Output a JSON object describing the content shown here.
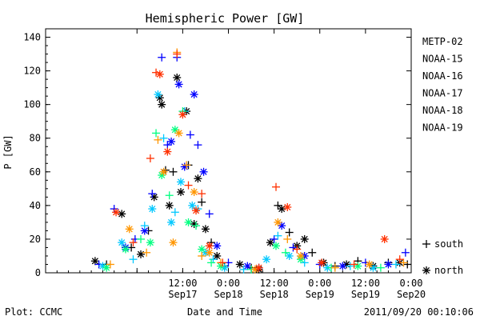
{
  "chart_data": {
    "type": "scatter",
    "title": "Hemispheric Power [GW]",
    "xlabel": "Date and Time",
    "ylabel": "P [GW]",
    "ylim": [
      0,
      145
    ],
    "xlim": [
      "2011-09-16 00:00",
      "2011-09-20 00:00"
    ],
    "y_ticks": [
      0,
      20,
      40,
      60,
      80,
      100,
      120,
      140
    ],
    "x_ticks": [
      {
        "x": "2011-09-17 00:00",
        "label": ""
      },
      {
        "x": "2011-09-17 12:00",
        "label": "12:00",
        "date": "Sep17"
      },
      {
        "x": "2011-09-18 00:00",
        "label": "0:00",
        "date": "Sep18"
      },
      {
        "x": "2011-09-18 12:00",
        "label": "12:00",
        "date": "Sep18"
      },
      {
        "x": "2011-09-19 00:00",
        "label": "0:00",
        "date": "Sep19"
      },
      {
        "x": "2011-09-19 12:00",
        "label": "12:00",
        "date": "Sep19"
      },
      {
        "x": "2011-09-20 00:00",
        "label": "0:00",
        "date": "Sep20"
      }
    ],
    "grid": false,
    "legend_position": "right",
    "symbols": [
      {
        "marker": "+",
        "hemisphere": "south"
      },
      {
        "marker": "*",
        "hemisphere": "north"
      }
    ],
    "series": [
      {
        "name": "METP-02",
        "color": "#000000",
        "points": [
          [
            "2011-09-16 13:00",
            7,
            "*"
          ],
          [
            "2011-09-16 16:00",
            5,
            "+"
          ],
          [
            "2011-09-16 20:00",
            35,
            "*"
          ],
          [
            "2011-09-16 22:30",
            15,
            "+"
          ],
          [
            "2011-09-17 01:00",
            11,
            "*"
          ],
          [
            "2011-09-17 03:00",
            25,
            "+"
          ],
          [
            "2011-09-17 04:30",
            45,
            "*"
          ],
          [
            "2011-09-17 06:00",
            104,
            "*"
          ],
          [
            "2011-09-17 06:30",
            100,
            "*"
          ],
          [
            "2011-09-17 07:30",
            61,
            "+"
          ],
          [
            "2011-09-17 08:30",
            40,
            "*"
          ],
          [
            "2011-09-17 09:30",
            60,
            "+"
          ],
          [
            "2011-09-17 10:30",
            116,
            "*"
          ],
          [
            "2011-09-17 11:30",
            48,
            "*"
          ],
          [
            "2011-09-17 13:00",
            96,
            "*"
          ],
          [
            "2011-09-17 13:30",
            64,
            "+"
          ],
          [
            "2011-09-17 15:00",
            29,
            "*"
          ],
          [
            "2011-09-17 16:00",
            56,
            "*"
          ],
          [
            "2011-09-17 17:00",
            42,
            "+"
          ],
          [
            "2011-09-17 18:00",
            26,
            "*"
          ],
          [
            "2011-09-17 19:30",
            18,
            "+"
          ],
          [
            "2011-09-17 21:00",
            10,
            "*"
          ],
          [
            "2011-09-17 23:00",
            4,
            "+"
          ],
          [
            "2011-09-18 03:00",
            5,
            "*"
          ],
          [
            "2011-09-18 06:00",
            3,
            "+"
          ],
          [
            "2011-09-18 08:00",
            2,
            "*"
          ],
          [
            "2011-09-18 11:00",
            18,
            "*"
          ],
          [
            "2011-09-18 13:00",
            40,
            "+"
          ],
          [
            "2011-09-18 14:00",
            38,
            "*"
          ],
          [
            "2011-09-18 16:00",
            24,
            "+"
          ],
          [
            "2011-09-18 18:00",
            16,
            "*"
          ],
          [
            "2011-09-18 20:00",
            20,
            "*"
          ],
          [
            "2011-09-18 22:00",
            12,
            "+"
          ],
          [
            "2011-09-19 01:00",
            6,
            "*"
          ],
          [
            "2011-09-19 04:00",
            4,
            "+"
          ],
          [
            "2011-09-19 07:00",
            5,
            "*"
          ],
          [
            "2011-09-19 10:00",
            7,
            "+"
          ],
          [
            "2011-09-19 14:00",
            4,
            "*"
          ],
          [
            "2011-09-19 18:00",
            6,
            "+"
          ],
          [
            "2011-09-19 21:00",
            6,
            "*"
          ],
          [
            "2011-09-19 23:00",
            5,
            "+"
          ]
        ]
      },
      {
        "name": "NOAA-15",
        "color": "#0000ff",
        "points": [
          [
            "2011-09-16 14:00",
            5,
            "+"
          ],
          [
            "2011-09-16 18:00",
            38,
            "+"
          ],
          [
            "2011-09-16 21:00",
            15,
            "*"
          ],
          [
            "2011-09-16 23:30",
            20,
            "+"
          ],
          [
            "2011-09-17 02:00",
            25,
            "*"
          ],
          [
            "2011-09-17 04:00",
            47,
            "+"
          ],
          [
            "2011-09-17 06:30",
            128,
            "+"
          ],
          [
            "2011-09-17 08:00",
            76,
            "+"
          ],
          [
            "2011-09-17 09:00",
            78,
            "*"
          ],
          [
            "2011-09-17 10:30",
            128,
            "+"
          ],
          [
            "2011-09-17 11:00",
            112,
            "*"
          ],
          [
            "2011-09-17 12:30",
            63,
            "*"
          ],
          [
            "2011-09-17 14:00",
            82,
            "+"
          ],
          [
            "2011-09-17 15:00",
            106,
            "*"
          ],
          [
            "2011-09-17 16:00",
            76,
            "+"
          ],
          [
            "2011-09-17 17:30",
            60,
            "*"
          ],
          [
            "2011-09-17 19:00",
            35,
            "+"
          ],
          [
            "2011-09-17 21:00",
            16,
            "*"
          ],
          [
            "2011-09-18 00:00",
            6,
            "+"
          ],
          [
            "2011-09-18 05:00",
            4,
            "*"
          ],
          [
            "2011-09-18 08:00",
            3,
            "+"
          ],
          [
            "2011-09-18 12:00",
            20,
            "+"
          ],
          [
            "2011-09-18 14:00",
            28,
            "*"
          ],
          [
            "2011-09-18 17:00",
            15,
            "+"
          ],
          [
            "2011-09-18 20:00",
            10,
            "*"
          ],
          [
            "2011-09-19 00:00",
            5,
            "+"
          ],
          [
            "2011-09-19 06:00",
            4,
            "*"
          ],
          [
            "2011-09-19 12:00",
            6,
            "+"
          ],
          [
            "2011-09-19 18:00",
            5,
            "*"
          ],
          [
            "2011-09-19 22:30",
            12,
            "+"
          ]
        ]
      },
      {
        "name": "NOAA-16",
        "color": "#00c8ff",
        "points": [
          [
            "2011-09-16 15:00",
            4,
            "*"
          ],
          [
            "2011-09-16 20:00",
            18,
            "*"
          ],
          [
            "2011-09-16 23:00",
            8,
            "+"
          ],
          [
            "2011-09-17 02:00",
            28,
            "+"
          ],
          [
            "2011-09-17 04:00",
            38,
            "*"
          ],
          [
            "2011-09-17 05:30",
            106,
            "*"
          ],
          [
            "2011-09-17 07:00",
            80,
            "+"
          ],
          [
            "2011-09-17 09:00",
            30,
            "*"
          ],
          [
            "2011-09-17 10:00",
            36,
            "+"
          ],
          [
            "2011-09-17 11:30",
            54,
            "*"
          ],
          [
            "2011-09-17 12:30",
            96,
            "+"
          ],
          [
            "2011-09-17 14:30",
            40,
            "*"
          ],
          [
            "2011-09-17 16:00",
            38,
            "+"
          ],
          [
            "2011-09-17 18:00",
            12,
            "*"
          ],
          [
            "2011-09-17 20:00",
            8,
            "+"
          ],
          [
            "2011-09-17 23:00",
            3,
            "*"
          ],
          [
            "2011-09-18 04:00",
            2,
            "+"
          ],
          [
            "2011-09-18 10:00",
            8,
            "*"
          ],
          [
            "2011-09-18 13:00",
            22,
            "+"
          ],
          [
            "2011-09-18 16:00",
            10,
            "*"
          ],
          [
            "2011-09-18 20:00",
            6,
            "+"
          ],
          [
            "2011-09-19 02:00",
            3,
            "*"
          ],
          [
            "2011-09-19 08:00",
            4,
            "+"
          ],
          [
            "2011-09-19 14:00",
            3,
            "*"
          ],
          [
            "2011-09-19 20:00",
            5,
            "+"
          ]
        ]
      },
      {
        "name": "NOAA-17",
        "color": "#00ff80",
        "points": [
          [
            "2011-09-16 16:00",
            3,
            "*"
          ],
          [
            "2011-09-16 21:00",
            14,
            "*"
          ],
          [
            "2011-09-17 01:00",
            20,
            "+"
          ],
          [
            "2011-09-17 03:30",
            18,
            "*"
          ],
          [
            "2011-09-17 05:00",
            83,
            "+"
          ],
          [
            "2011-09-17 06:30",
            58,
            "*"
          ],
          [
            "2011-09-17 08:30",
            46,
            "+"
          ],
          [
            "2011-09-17 10:00",
            85,
            "*"
          ],
          [
            "2011-09-17 12:00",
            96,
            "+"
          ],
          [
            "2011-09-17 13:30",
            30,
            "*"
          ],
          [
            "2011-09-17 15:30",
            28,
            "+"
          ],
          [
            "2011-09-17 17:00",
            14,
            "*"
          ],
          [
            "2011-09-17 19:30",
            6,
            "+"
          ],
          [
            "2011-09-17 22:00",
            4,
            "*"
          ],
          [
            "2011-09-18 06:00",
            2,
            "+"
          ],
          [
            "2011-09-18 12:30",
            16,
            "*"
          ],
          [
            "2011-09-18 15:00",
            12,
            "+"
          ],
          [
            "2011-09-18 19:00",
            8,
            "*"
          ],
          [
            "2011-09-19 03:00",
            3,
            "+"
          ],
          [
            "2011-09-19 10:00",
            4,
            "*"
          ],
          [
            "2011-09-19 16:00",
            3,
            "+"
          ]
        ]
      },
      {
        "name": "NOAA-18",
        "color": "#ff9600",
        "points": [
          [
            "2011-09-16 17:00",
            5,
            "+"
          ],
          [
            "2011-09-16 22:00",
            26,
            "*"
          ],
          [
            "2011-09-17 02:30",
            12,
            "+"
          ],
          [
            "2011-09-17 05:30",
            79,
            "+"
          ],
          [
            "2011-09-17 07:00",
            60,
            "*"
          ],
          [
            "2011-09-17 09:30",
            18,
            "*"
          ],
          [
            "2011-09-17 10:30",
            131,
            "+"
          ],
          [
            "2011-09-17 11:00",
            83,
            "*"
          ],
          [
            "2011-09-17 13:00",
            64,
            "+"
          ],
          [
            "2011-09-17 15:00",
            48,
            "*"
          ],
          [
            "2011-09-17 17:00",
            10,
            "+"
          ],
          [
            "2011-09-17 19:00",
            12,
            "*"
          ],
          [
            "2011-09-17 22:00",
            6,
            "+"
          ],
          [
            "2011-09-18 07:00",
            2,
            "*"
          ],
          [
            "2011-09-18 13:00",
            30,
            "*"
          ],
          [
            "2011-09-18 15:30",
            20,
            "+"
          ],
          [
            "2011-09-18 19:00",
            10,
            "*"
          ],
          [
            "2011-09-19 04:00",
            3,
            "+"
          ],
          [
            "2011-09-19 13:00",
            5,
            "*"
          ],
          [
            "2011-09-19 22:00",
            6,
            "+"
          ]
        ]
      },
      {
        "name": "NOAA-19",
        "color": "#ff3000",
        "points": [
          [
            "2011-09-16 18:30",
            36,
            "*"
          ],
          [
            "2011-09-16 23:00",
            18,
            "+"
          ],
          [
            "2011-09-17 03:30",
            68,
            "+"
          ],
          [
            "2011-09-17 05:00",
            119,
            "+"
          ],
          [
            "2011-09-17 06:00",
            118,
            "*"
          ],
          [
            "2011-09-17 08:00",
            72,
            "*"
          ],
          [
            "2011-09-17 10:30",
            130,
            "+"
          ],
          [
            "2011-09-17 12:00",
            94,
            "*"
          ],
          [
            "2011-09-17 13:30",
            52,
            "+"
          ],
          [
            "2011-09-17 15:30",
            37,
            "*"
          ],
          [
            "2011-09-17 17:00",
            47,
            "+"
          ],
          [
            "2011-09-17 19:00",
            16,
            "*"
          ],
          [
            "2011-09-17 22:30",
            6,
            "+"
          ],
          [
            "2011-09-18 08:00",
            3,
            "*"
          ],
          [
            "2011-09-18 12:30",
            51,
            "+"
          ],
          [
            "2011-09-18 15:30",
            39,
            "*"
          ],
          [
            "2011-09-18 18:00",
            14,
            "+"
          ],
          [
            "2011-09-19 00:30",
            6,
            "*"
          ],
          [
            "2011-09-19 09:00",
            5,
            "+"
          ],
          [
            "2011-09-19 17:00",
            20,
            "*"
          ],
          [
            "2011-09-19 21:00",
            8,
            "+"
          ]
        ]
      }
    ]
  },
  "footer": {
    "left": "Plot: CCMC",
    "right": "2011/09/20 00:10:06"
  }
}
